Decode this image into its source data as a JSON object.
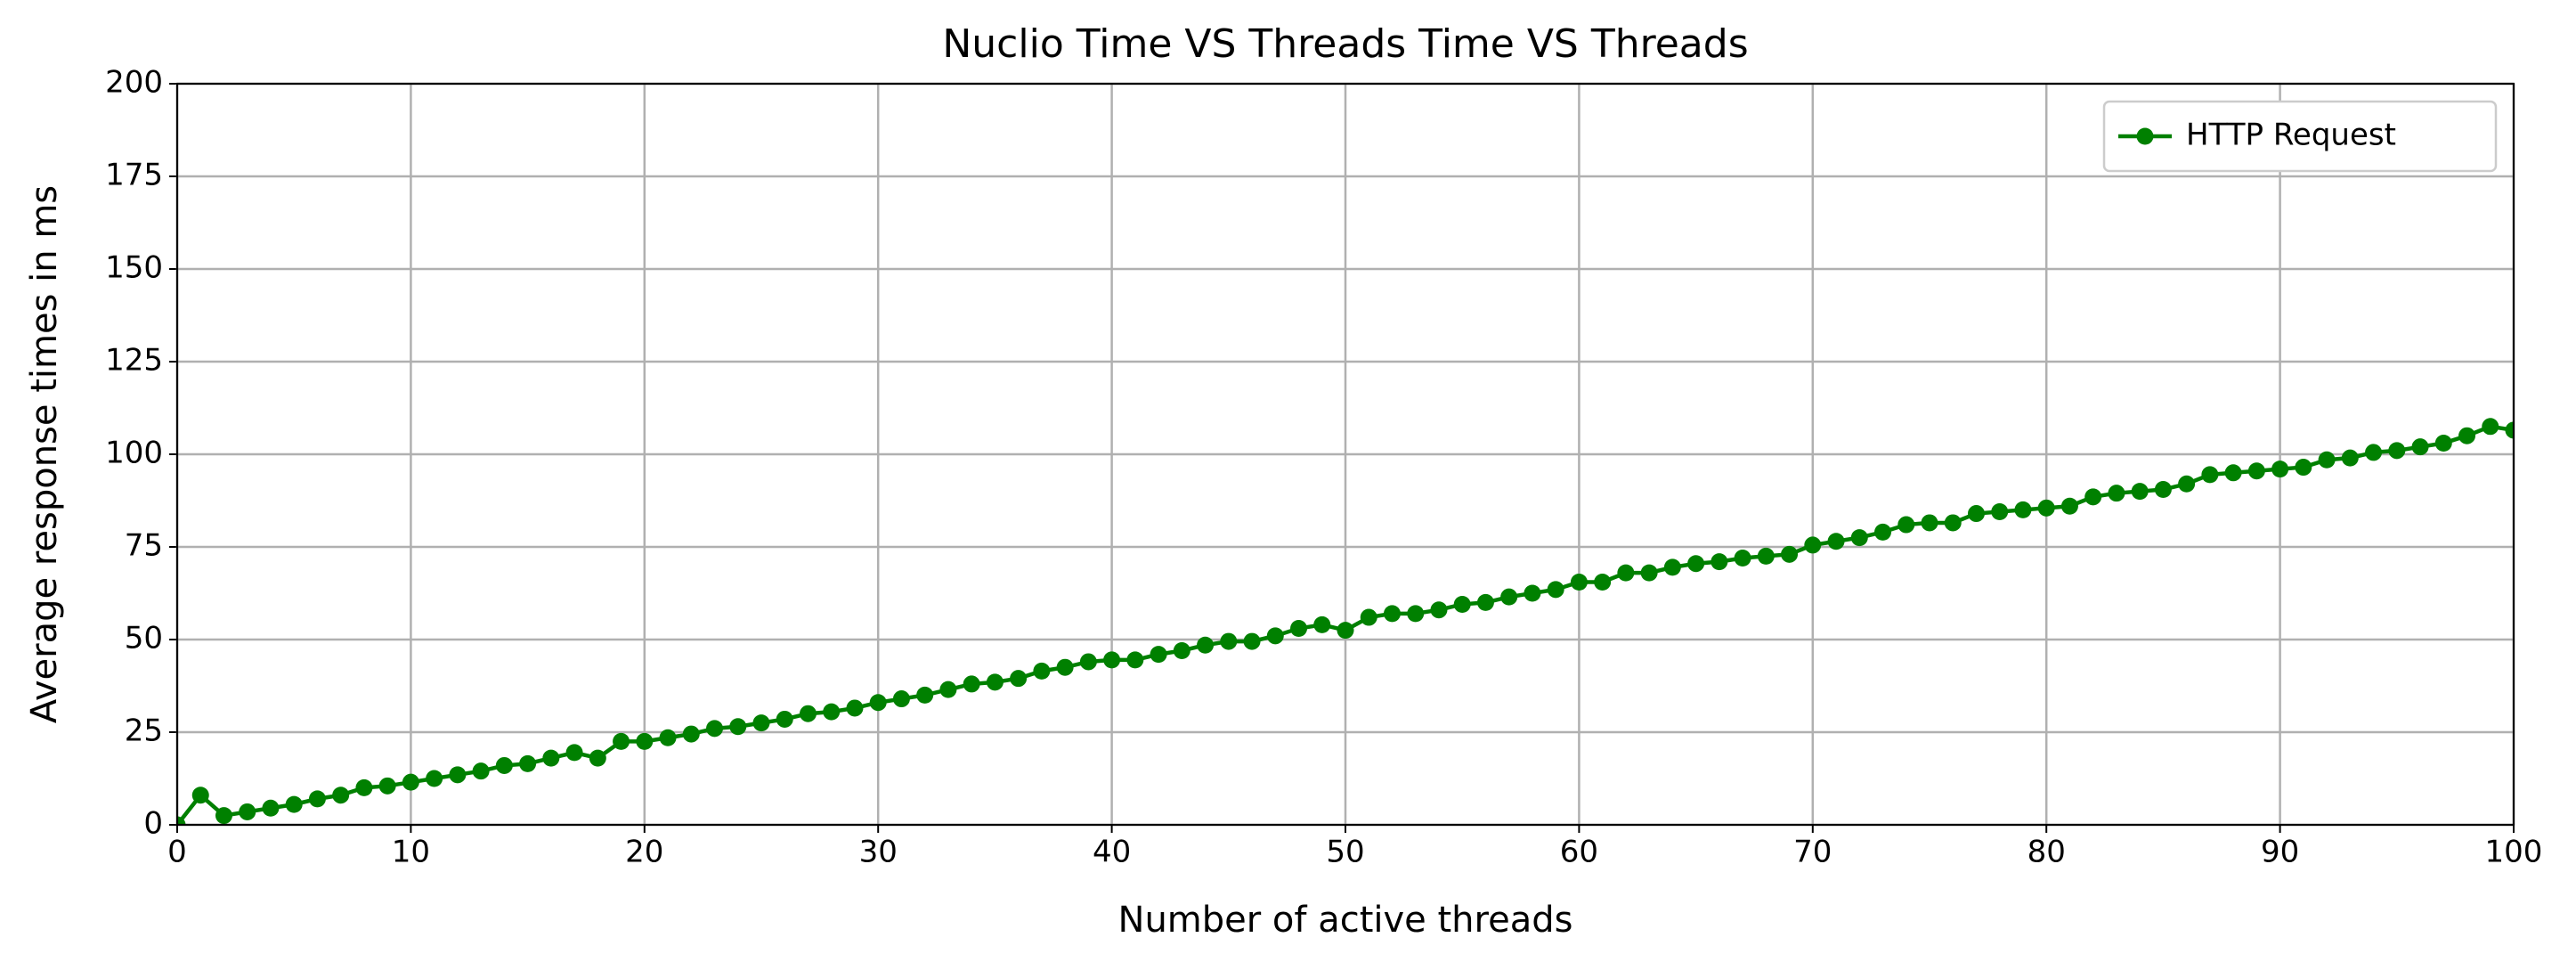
{
  "chart_data": {
    "type": "line",
    "title": "Nuclio Time VS Threads Time VS Threads",
    "x_label": "Number of active threads",
    "y_label": "Average response times in ms",
    "x": [
      0,
      1,
      2,
      3,
      4,
      5,
      6,
      7,
      8,
      9,
      10,
      11,
      12,
      13,
      14,
      15,
      16,
      17,
      18,
      19,
      20,
      21,
      22,
      23,
      24,
      25,
      26,
      27,
      28,
      29,
      30,
      31,
      32,
      33,
      34,
      35,
      36,
      37,
      38,
      39,
      40,
      41,
      42,
      43,
      44,
      45,
      46,
      47,
      48,
      49,
      50,
      51,
      52,
      53,
      54,
      55,
      56,
      57,
      58,
      59,
      60,
      61,
      62,
      63,
      64,
      65,
      66,
      67,
      68,
      69,
      70,
      71,
      72,
      73,
      74,
      75,
      76,
      77,
      78,
      79,
      80,
      81,
      82,
      83,
      84,
      85,
      86,
      87,
      88,
      89,
      90,
      91,
      92,
      93,
      94,
      95,
      96,
      97,
      98,
      99,
      100
    ],
    "series": [
      {
        "name": "HTTP Request",
        "color": "#008000",
        "values": [
          0,
          8,
          2.5,
          3.5,
          4.5,
          5.5,
          7,
          8,
          10,
          10.5,
          11.5,
          12.5,
          13.5,
          14.5,
          16,
          16.5,
          18,
          19.5,
          18,
          22.5,
          22.5,
          23.5,
          24.5,
          26,
          26.5,
          27.5,
          28.5,
          30,
          30.5,
          31.5,
          33,
          34,
          35,
          36.5,
          38,
          38.5,
          39.5,
          41.5,
          42.5,
          44,
          44.5,
          44.5,
          46,
          47,
          48.5,
          49.5,
          49.5,
          51,
          53,
          54,
          52.5,
          56,
          57,
          57,
          58,
          59.5,
          60,
          61.5,
          62.5,
          63.5,
          65.5,
          65.5,
          68,
          68,
          69.5,
          70.5,
          71,
          72,
          72.5,
          73,
          75.5,
          76.5,
          77.5,
          79,
          81,
          81.5,
          81.5,
          84,
          84.5,
          85,
          85.5,
          86,
          88.5,
          89.5,
          90,
          90.5,
          92,
          94.5,
          95,
          95.5,
          96,
          96.5,
          98.5,
          99,
          100.5,
          101,
          102,
          103,
          105,
          107.5,
          106.5
        ]
      }
    ],
    "xlim": [
      0,
      100
    ],
    "xticks": [
      0,
      10,
      20,
      30,
      40,
      50,
      60,
      70,
      80,
      90,
      100
    ],
    "ylim": [
      0,
      200
    ],
    "yticks": [
      0,
      25,
      50,
      75,
      100,
      125,
      150,
      175,
      200
    ],
    "grid": true,
    "legend": "upper right"
  }
}
